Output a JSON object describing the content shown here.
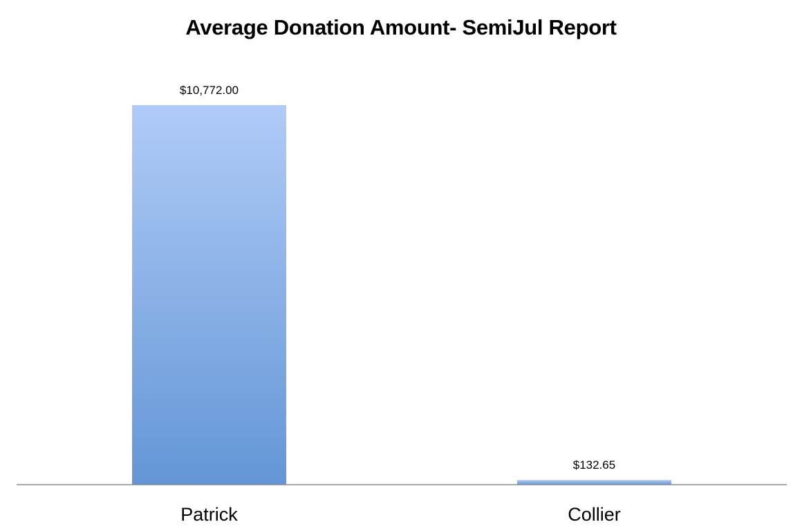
{
  "chart_data": {
    "type": "bar",
    "title": "Average Donation Amount- SemiJul Report",
    "categories": [
      "Patrick",
      "Collier"
    ],
    "values": [
      10772.0,
      132.65
    ],
    "data_labels": [
      "$10,772.00",
      "$132.65"
    ],
    "xlabel": "",
    "ylabel": "",
    "ylim": [
      0,
      10772
    ],
    "grid": false,
    "legend": "none",
    "colors": {
      "bar_top": "#b0cbf7",
      "bar_bottom": "#6396d6",
      "axis": "#8c8c8c"
    }
  }
}
